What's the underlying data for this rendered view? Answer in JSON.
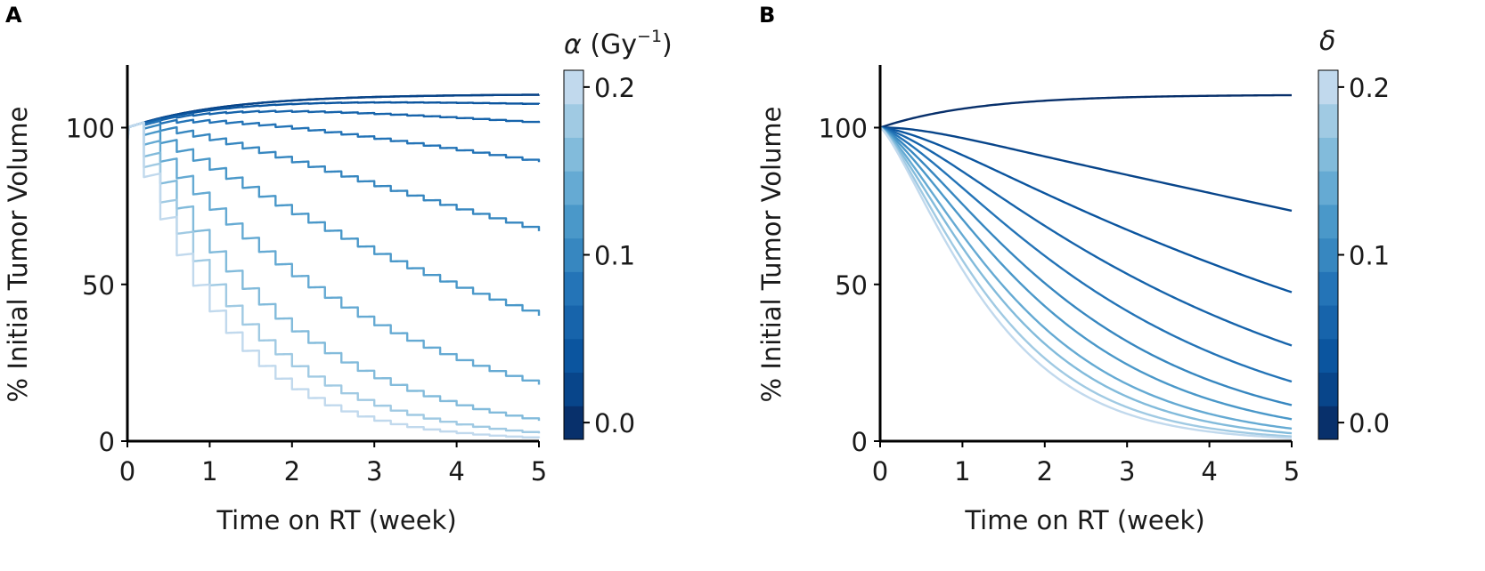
{
  "chart_data": [
    {
      "panel_label": "A",
      "type": "line",
      "xlabel": "Time on RT (week)",
      "ylabel": "% Initial Tumor Volume",
      "xlim": [
        0,
        5
      ],
      "ylim": [
        0,
        120
      ],
      "xticks": [
        "0",
        "1",
        "2",
        "3",
        "4",
        "5"
      ],
      "yticks": [
        "0",
        "50",
        "100"
      ],
      "colorbar": {
        "title_symbol": "α",
        "title_unit": " (Gy",
        "title_sup": "−1",
        "title_close": ")",
        "range": [
          -0.01,
          0.21
        ],
        "ticks": [
          "0.0",
          "0.1",
          "0.2"
        ],
        "levels": 11
      },
      "model": "fractionated",
      "series_params": [
        0.0,
        0.02,
        0.04,
        0.06,
        0.08,
        0.1,
        0.12,
        0.14,
        0.16,
        0.18,
        0.2
      ],
      "series_end_values": [
        110.5,
        110.5,
        107.5,
        101.5,
        89,
        67,
        40,
        18,
        6.5,
        2.5,
        1
      ],
      "series_colors": [
        "#08306b",
        "#08458a",
        "#0b559f",
        "#1764ab",
        "#2474b7",
        "#3787c0",
        "#4a98c9",
        "#65aad3",
        "#82bbdb",
        "#a0cae3",
        "#c1d9ed"
      ]
    },
    {
      "panel_label": "B",
      "type": "line",
      "xlabel": "Time on RT (week)",
      "ylabel": "% Initial Tumor Volume",
      "xlim": [
        0,
        5
      ],
      "ylim": [
        0,
        120
      ],
      "xticks": [
        "0",
        "1",
        "2",
        "3",
        "4",
        "5"
      ],
      "yticks": [
        "0",
        "50",
        "100"
      ],
      "colorbar": {
        "title_symbol": "δ",
        "title_unit": "",
        "title_sup": "",
        "title_close": "",
        "range": [
          -0.01,
          0.21
        ],
        "ticks": [
          "0.0",
          "0.1",
          "0.2"
        ],
        "levels": 11
      },
      "model": "smooth",
      "series_params": [
        0.0,
        0.02,
        0.04,
        0.06,
        0.08,
        0.1,
        0.12,
        0.14,
        0.16,
        0.18,
        0.2
      ],
      "series_end_values": [
        110.5,
        73.5,
        47.5,
        30.5,
        19,
        11.5,
        7,
        4,
        2.5,
        1.5,
        1
      ],
      "series_colors": [
        "#08306b",
        "#08458a",
        "#0b559f",
        "#1764ab",
        "#2474b7",
        "#3787c0",
        "#4a98c9",
        "#65aad3",
        "#82bbdb",
        "#a0cae3",
        "#c1d9ed"
      ]
    }
  ]
}
